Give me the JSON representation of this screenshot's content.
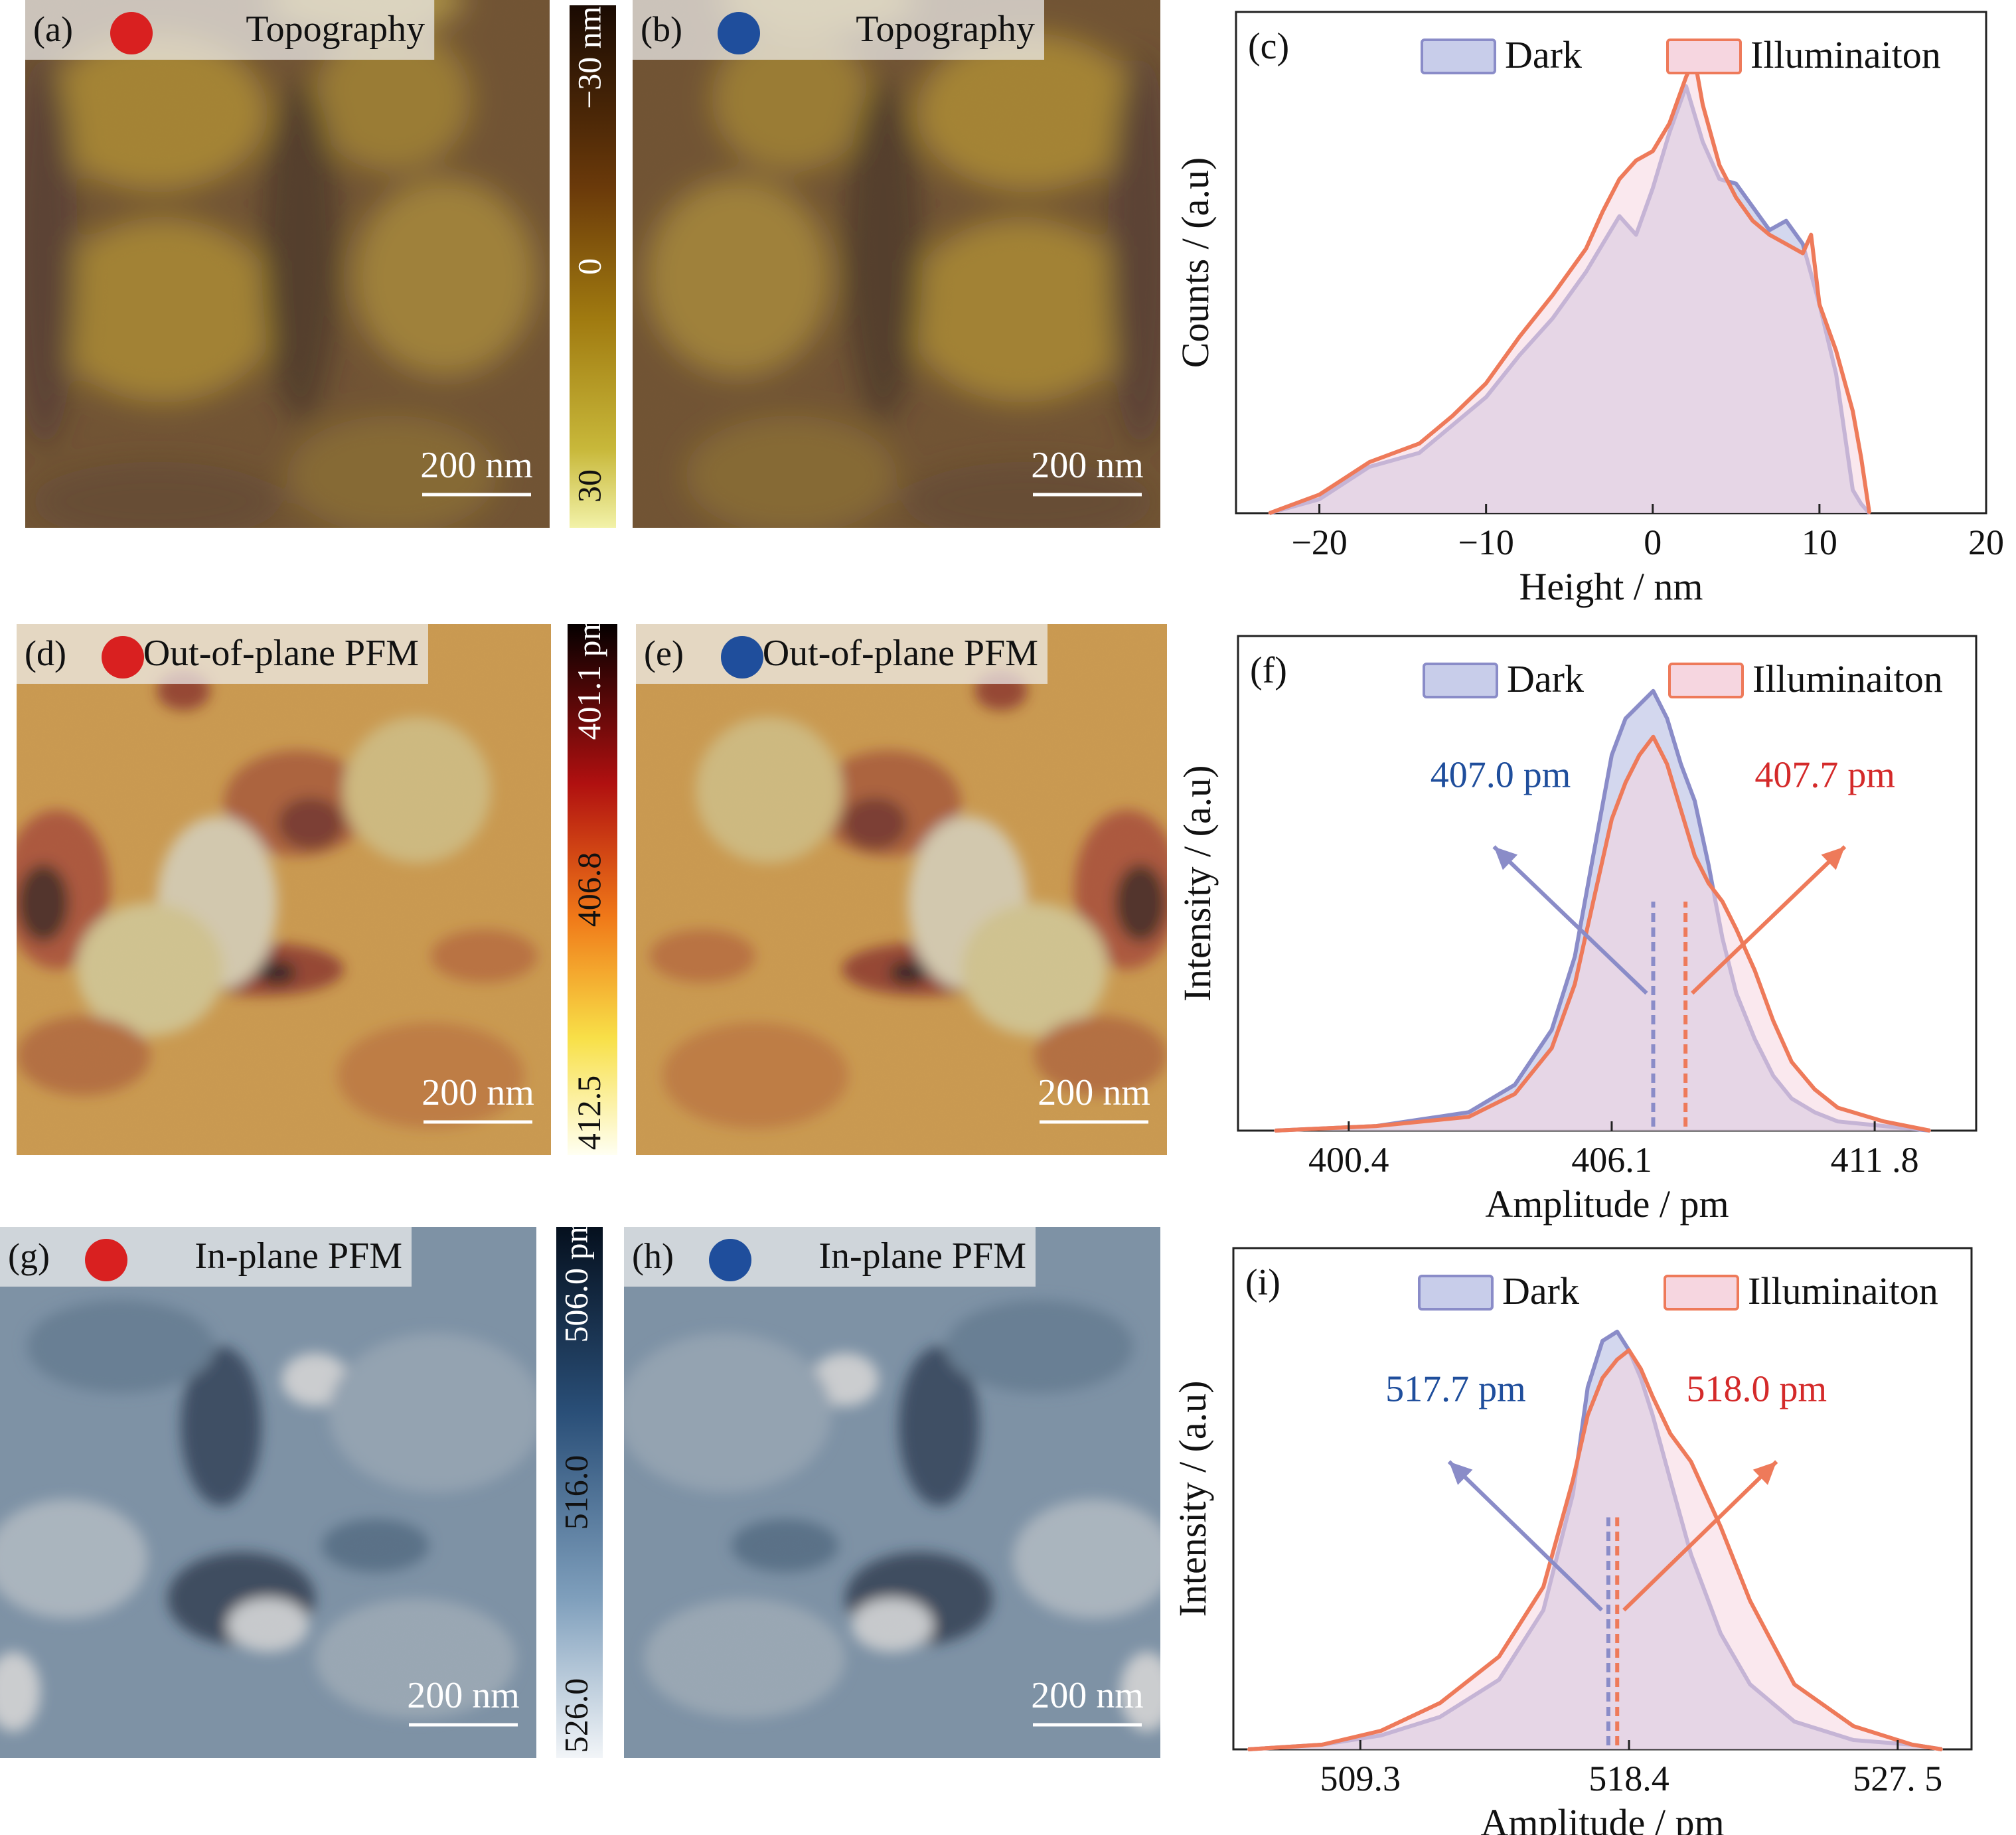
{
  "figure": {
    "panels": [
      {
        "id": "a",
        "label": "(a)",
        "title": "Topography",
        "marker": "red",
        "scale_bar": "200 nm",
        "cmap": "topo"
      },
      {
        "id": "b",
        "label": "(b)",
        "title": "Topography",
        "marker": "blue",
        "scale_bar": "200 nm",
        "cmap": "topo"
      },
      {
        "id": "d",
        "label": "(d)",
        "title": "Out-of-plane PFM",
        "marker": "red",
        "scale_bar": "200 nm",
        "cmap": "hot"
      },
      {
        "id": "e",
        "label": "(e)",
        "title": "Out-of-plane PFM",
        "marker": "blue",
        "scale_bar": "200 nm",
        "cmap": "hot"
      },
      {
        "id": "g",
        "label": "(g)",
        "title": "In-plane PFM",
        "marker": "red",
        "scale_bar": "200 nm",
        "cmap": "blue"
      },
      {
        "id": "h",
        "label": "(h)",
        "title": "In-plane PFM",
        "marker": "blue",
        "scale_bar": "200 nm",
        "cmap": "blue"
      }
    ],
    "colorbars": [
      {
        "id": "topo",
        "ticks": [
          "−30 nm",
          "0",
          "30"
        ]
      },
      {
        "id": "hot",
        "ticks": [
          "401.1 pm",
          "406.8",
          "412.5"
        ]
      },
      {
        "id": "blue",
        "ticks": [
          "506.0 pm",
          "516.0",
          "526.0"
        ]
      }
    ],
    "colors": {
      "marker_red": "#d92020",
      "marker_blue": "#1f4e9c",
      "dark_line": "#8a8cc8",
      "dark_fill": "#c8cdea",
      "illum_line": "#ee7a5a",
      "illum_fill": "#f6d6e0",
      "anno_blue": "#1f4e9c",
      "anno_red": "#d42a2a"
    }
  },
  "chart_data": [
    {
      "id": "c",
      "panel_label": "(c)",
      "type": "area",
      "xlabel": "Height / nm",
      "ylabel": "Counts / (a.u)",
      "xlim": [
        -25,
        20
      ],
      "ylim": [
        0,
        1.08
      ],
      "xticks": [
        "−20",
        "−10",
        "0",
        "10",
        "20"
      ],
      "series": [
        {
          "name": "Dark",
          "x": [
            -23,
            -20,
            -17,
            -14,
            -12,
            -10,
            -8,
            -6,
            -4,
            -3,
            -2,
            -1,
            0,
            1,
            2,
            3,
            4,
            5,
            6,
            7,
            8,
            9,
            10,
            11,
            12,
            12.5,
            13
          ],
          "y": [
            0,
            0.03,
            0.1,
            0.13,
            0.19,
            0.25,
            0.34,
            0.42,
            0.52,
            0.58,
            0.64,
            0.6,
            0.7,
            0.82,
            0.92,
            0.8,
            0.72,
            0.71,
            0.66,
            0.61,
            0.63,
            0.58,
            0.45,
            0.3,
            0.05,
            0.02,
            0
          ]
        },
        {
          "name": "Illuminaiton",
          "x": [
            -23,
            -20,
            -17,
            -14,
            -12,
            -10,
            -8,
            -6,
            -4,
            -3,
            -2,
            -1,
            0,
            1,
            2,
            2.5,
            3,
            4,
            5,
            6,
            7,
            8,
            9,
            9.5,
            10,
            11,
            12,
            12.5,
            13
          ],
          "y": [
            0,
            0.04,
            0.11,
            0.15,
            0.21,
            0.28,
            0.38,
            0.47,
            0.57,
            0.65,
            0.72,
            0.76,
            0.78,
            0.84,
            0.94,
            0.98,
            0.88,
            0.75,
            0.68,
            0.63,
            0.6,
            0.58,
            0.56,
            0.6,
            0.45,
            0.35,
            0.22,
            0.12,
            0
          ]
        }
      ]
    },
    {
      "id": "f",
      "panel_label": "(f)",
      "type": "area",
      "xlabel": "Amplitude / pm",
      "ylabel": "Intensity / (a.u)",
      "xlim": [
        398,
        414
      ],
      "ylim": [
        0,
        1.08
      ],
      "xticks": [
        "400.4",
        "406.1",
        "411 .8"
      ],
      "xtick_values": [
        400.4,
        406.1,
        411.8
      ],
      "series": [
        {
          "name": "Dark",
          "x": [
            398.8,
            401,
            403,
            404,
            404.8,
            405.3,
            405.7,
            406.1,
            406.4,
            406.7,
            407,
            407.3,
            407.6,
            407.9,
            408.2,
            408.5,
            408.8,
            409.2,
            409.6,
            410,
            410.5,
            411,
            412,
            413
          ],
          "y": [
            0,
            0.01,
            0.04,
            0.1,
            0.22,
            0.38,
            0.6,
            0.82,
            0.9,
            0.93,
            0.96,
            0.9,
            0.8,
            0.72,
            0.58,
            0.42,
            0.3,
            0.2,
            0.12,
            0.07,
            0.04,
            0.02,
            0.01,
            0
          ]
        },
        {
          "name": "Illuminaiton",
          "x": [
            398.8,
            401,
            403,
            404,
            404.8,
            405.3,
            405.7,
            406.1,
            406.4,
            406.7,
            407,
            407.3,
            407.6,
            407.9,
            408.2,
            408.5,
            408.8,
            409.2,
            409.6,
            410,
            410.5,
            411,
            412,
            413
          ],
          "y": [
            0,
            0.01,
            0.03,
            0.08,
            0.18,
            0.32,
            0.5,
            0.68,
            0.76,
            0.82,
            0.86,
            0.8,
            0.7,
            0.6,
            0.54,
            0.5,
            0.44,
            0.35,
            0.24,
            0.15,
            0.09,
            0.05,
            0.02,
            0
          ]
        }
      ],
      "medians": [
        {
          "value": 407.0,
          "label": "407.0 pm",
          "series": "Dark"
        },
        {
          "value": 407.7,
          "label": "407.7 pm",
          "series": "Illuminaiton"
        }
      ]
    },
    {
      "id": "i",
      "panel_label": "(i)",
      "type": "area",
      "xlabel": "Amplitude / pm",
      "ylabel": "Intensity / (a.u)",
      "xlim": [
        505,
        530
      ],
      "ylim": [
        0,
        1.08
      ],
      "xticks": [
        "509.3",
        "518.4",
        "527. 5"
      ],
      "xtick_values": [
        509.3,
        518.4,
        527.5
      ],
      "series": [
        {
          "name": "Dark",
          "x": [
            505.5,
            508,
            510,
            512,
            514,
            515.5,
            516.5,
            517,
            517.5,
            518,
            518.4,
            518.8,
            519.2,
            519.8,
            520.5,
            521.5,
            522.5,
            524,
            526,
            528,
            529
          ],
          "y": [
            0,
            0.01,
            0.03,
            0.07,
            0.15,
            0.3,
            0.55,
            0.78,
            0.88,
            0.9,
            0.86,
            0.8,
            0.72,
            0.58,
            0.42,
            0.25,
            0.14,
            0.06,
            0.02,
            0.01,
            0
          ]
        },
        {
          "name": "Illuminaiton",
          "x": [
            505.5,
            508,
            510,
            512,
            514,
            515.5,
            516.5,
            517,
            517.5,
            518,
            518.4,
            518.8,
            519.2,
            519.8,
            520.5,
            521.5,
            522.5,
            524,
            526,
            528,
            529
          ],
          "y": [
            0,
            0.01,
            0.04,
            0.1,
            0.2,
            0.35,
            0.58,
            0.72,
            0.8,
            0.84,
            0.86,
            0.82,
            0.76,
            0.68,
            0.62,
            0.48,
            0.32,
            0.14,
            0.05,
            0.01,
            0
          ]
        }
      ],
      "medians": [
        {
          "value": 517.7,
          "label": "517.7 pm",
          "series": "Dark"
        },
        {
          "value": 518.0,
          "label": "518.0 pm",
          "series": "Illuminaiton"
        }
      ]
    }
  ]
}
